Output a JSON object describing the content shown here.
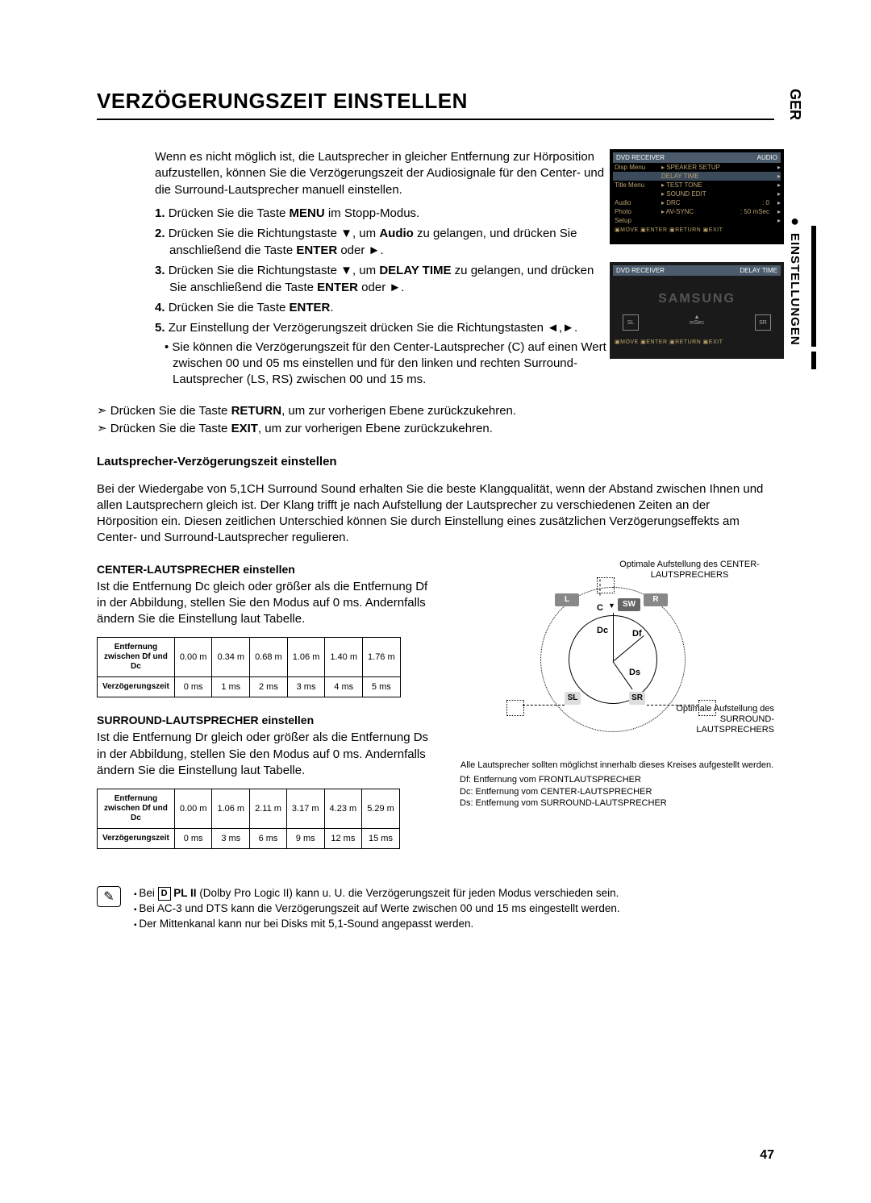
{
  "lang_tag": "GER",
  "section_tag": "EINSTELLUNGEN",
  "page_number": "47",
  "title": "VERZÖGERUNGSZEIT EINSTELLEN",
  "intro": "Wenn es nicht möglich ist, die Lautsprecher in gleicher Entfernung zur Hörposition aufzustellen, können Sie die Verzögerungszeit der Audiosignale für den Center- und die Surround-Lautsprecher manuell einstellen.",
  "step1_num": "1.",
  "step1_a": "Drücken Sie die Taste ",
  "step1_b": "MENU",
  "step1_c": " im Stopp-Modus.",
  "step2_num": "2.",
  "step2_a": "Drücken Sie die Richtungstaste ▼, um ",
  "step2_b": "Audio",
  "step2_c": " zu gelangen, und drücken Sie anschließend die Taste ",
  "step2_d": "ENTER",
  "step2_e": " oder ►.",
  "step3_num": "3.",
  "step3_a": "Drücken Sie die Richtungstaste ▼, um ",
  "step3_b": "DELAY TIME",
  "step3_c": " zu gelangen, und drücken Sie anschließend die Taste ",
  "step3_d": "ENTER",
  "step3_e": " oder ►.",
  "step4_num": "4.",
  "step4_a": "Drücken Sie die Taste ",
  "step4_b": "ENTER",
  "step4_c": ".",
  "step5_num": "5.",
  "step5": "Zur Einstellung der Verzögerungszeit drücken Sie die Richtungstasten ◄,►.",
  "step5_sub": "• Sie können die Verzögerungszeit für den Center-Lautsprecher (C) auf einen Wert zwischen 00 und 05 ms einstellen und für den linken und rechten Surround-Lautsprecher (LS, RS) zwischen 00 und 15 ms.",
  "return_a": "Drücken Sie die Taste ",
  "return_b": "RETURN",
  "return_c": ", um zur vorherigen Ebene zurückzukehren.",
  "exit_a": "Drücken Sie die Taste ",
  "exit_b": "EXIT",
  "exit_c": ", um zur vorherigen Ebene zurückzukehren.",
  "subheading1": "Lautsprecher-Verzögerungszeit einstellen",
  "para1": "Bei der Wiedergabe von 5,1CH Surround Sound erhalten Sie die beste Klangqualität, wenn der Abstand zwischen Ihnen und allen Lautsprechern gleich ist. Der Klang trifft je nach Aufstellung der Lautsprecher zu verschiedenen Zeiten an der Hörposition ein. Diesen zeitlichen Unterschied können Sie durch Einstellung eines zusätzlichen Verzögerungseffekts am Center- und Surround-Lautsprecher regulieren.",
  "center_heading": "CENTER-LAUTSPRECHER einstellen",
  "center_para": "Ist die Entfernung Dc gleich oder größer als die Entfernung Df in der Abbildung, stellen Sie den Modus auf 0 ms. Andernfalls ändern Sie die Einstellung laut Tabelle.",
  "surround_heading": "SURROUND-LAUTSPRECHER einstellen",
  "surround_para": "Ist die Entfernung Dr gleich oder größer als die Entfernung Ds in der Abbildung, stellen Sie den Modus auf 0 ms. Andernfalls ändern Sie die Einstellung laut Tabelle.",
  "tbl_row1_label": "Entfernung zwischen Df und Dc",
  "tbl_row2_label": "Verzögerungszeit",
  "table_center": {
    "distances": [
      "0.00 m",
      "0.34 m",
      "0.68 m",
      "1.06 m",
      "1.40 m",
      "1.76 m"
    ],
    "delays": [
      "0 ms",
      "1 ms",
      "2 ms",
      "3 ms",
      "4 ms",
      "5 ms"
    ]
  },
  "table_surround": {
    "distances": [
      "0.00 m",
      "1.06 m",
      "2.11 m",
      "3.17 m",
      "4.23 m",
      "5.29 m"
    ],
    "delays": [
      "0 ms",
      "3 ms",
      "6 ms",
      "9 ms",
      "12 ms",
      "15 ms"
    ]
  },
  "osd1": {
    "hdr_left": "DVD RECEIVER",
    "hdr_right": "AUDIO",
    "rows": [
      {
        "l": "Disp Menu",
        "m": "▸ SPEAKER SETUP",
        "v": ""
      },
      {
        "l": "",
        "m": "DELAY TIME",
        "v": "",
        "hl": true
      },
      {
        "l": "Title Menu",
        "m": "▸ TEST TONE",
        "v": ""
      },
      {
        "l": "",
        "m": "▸ SOUND EDIT",
        "v": ""
      },
      {
        "l": "Audio",
        "m": "▸ DRC",
        "v": ": 0"
      },
      {
        "l": "Photo",
        "m": "▸ AV-SYNC",
        "v": ": 50 mSec"
      },
      {
        "l": "Setup",
        "m": "",
        "v": ""
      }
    ],
    "footer": "▣MOVE  ▣ENTER  ▣RETURN  ▣EXIT"
  },
  "osd2": {
    "hdr_left": "DVD RECEIVER",
    "hdr_right": "DELAY TIME",
    "logo": "SAMSUNG",
    "sp_l": "SL",
    "sp_c": "▲",
    "sp_c2": "mSec",
    "sp_r": "SR",
    "footer": "▣MOVE  ▣ENTER  ▣RETURN  ▣EXIT"
  },
  "diagram": {
    "note_top": "Optimale Aufstellung des CENTER-LAUTSPRECHERS",
    "note_right": "Optimale Aufstellung des SURROUND-LAUTSPRECHERS",
    "labels": {
      "L": "L",
      "R": "R",
      "C": "C",
      "SW": "SW",
      "Dc": "Dc",
      "Df": "Df",
      "Ds": "Ds",
      "SL": "SL",
      "SR": "SR"
    },
    "caption": "Alle Lautsprecher sollten möglichst innerhalb dieses Kreises aufgestellt werden.",
    "legend": "Df: Entfernung vom FRONTLAUTSPRECHER\nDc: Entfernung vom CENTER-LAUTSPRECHER\nDs: Entfernung vom SURROUND-LAUTSPRECHER"
  },
  "notes": {
    "n1_a": "Bei ",
    "n1_badge": "D",
    "n1_b": " PL II",
    "n1_c": " (Dolby Pro Logic II) kann u. U. die Verzögerungszeit für jeden Modus verschieden sein.",
    "n2": "Bei AC-3 und DTS kann die Verzögerungszeit auf Werte zwischen 00 und 15 ms eingestellt werden.",
    "n3": "Der Mittenkanal kann nur bei Disks mit 5,1-Sound angepasst werden."
  },
  "arrow": "➣"
}
